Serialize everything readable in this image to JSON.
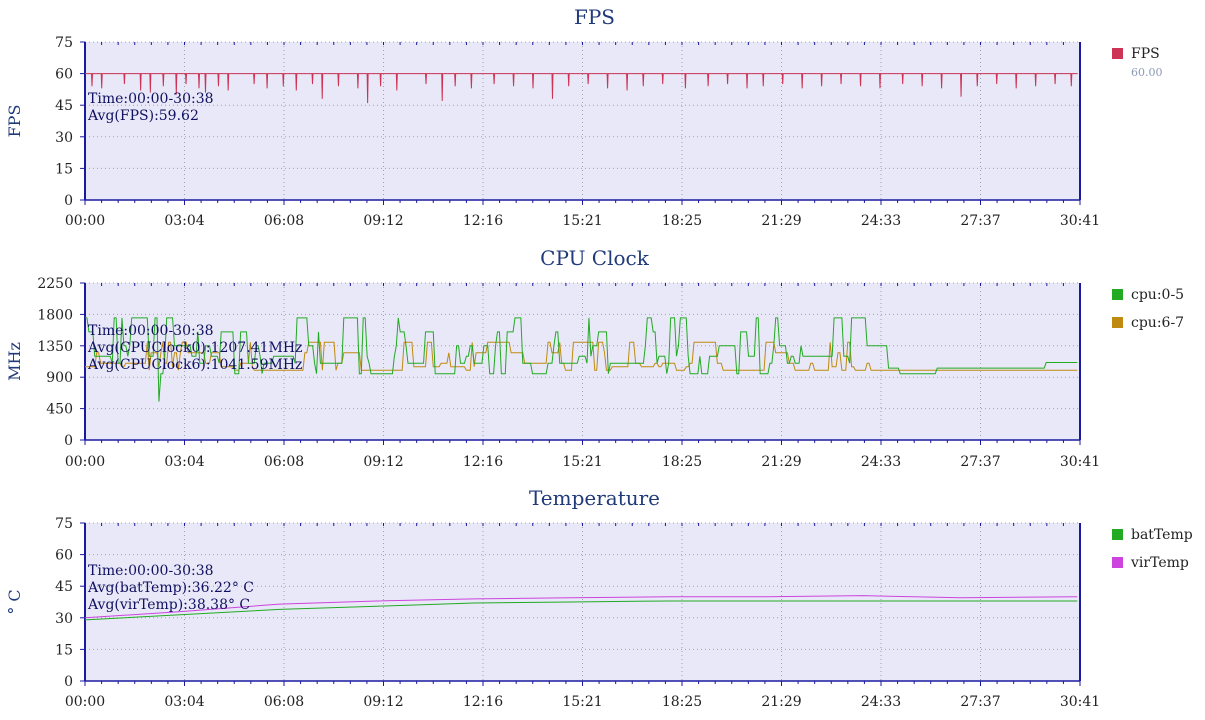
{
  "colors": {
    "plot_bg": "#e8e8f8",
    "axis": "#1a1aa0",
    "title": "#203a7a",
    "text": "#222222",
    "grid": "#a0a0b0",
    "annotation": "#101060"
  },
  "chart_data": [
    {
      "type": "line",
      "title": "FPS",
      "ylabel": "FPS",
      "ylim": [
        0,
        75
      ],
      "yticks": [
        "0",
        "15",
        "30",
        "45",
        "60",
        "75"
      ],
      "xticks": [
        "00:00",
        "03:04",
        "06:08",
        "09:12",
        "12:16",
        "15:21",
        "18:25",
        "21:29",
        "24:33",
        "27:37",
        "30:41"
      ],
      "grid": true,
      "legend_position": "right",
      "annotations": [
        "Time:00:00-30:38",
        "Avg(FPS):59.62"
      ],
      "series": [
        {
          "name": "FPS",
          "legend_value": "60.00",
          "color": "#cc3355",
          "baseline": 60,
          "dips": [
            [
              0.2,
              54
            ],
            [
              0.5,
              53
            ],
            [
              1.2,
              55
            ],
            [
              1.7,
              52
            ],
            [
              2.0,
              51
            ],
            [
              2.4,
              54
            ],
            [
              2.8,
              50
            ],
            [
              3.1,
              55
            ],
            [
              3.5,
              53
            ],
            [
              3.7,
              51
            ],
            [
              4.1,
              54
            ],
            [
              4.4,
              52
            ],
            [
              5.2,
              55
            ],
            [
              5.6,
              53
            ],
            [
              6.1,
              54
            ],
            [
              6.5,
              52
            ],
            [
              7.0,
              55
            ],
            [
              7.3,
              48
            ],
            [
              7.8,
              54
            ],
            [
              8.4,
              53
            ],
            [
              8.7,
              46
            ],
            [
              9.1,
              54
            ],
            [
              9.6,
              52
            ],
            [
              10.5,
              55
            ],
            [
              11.0,
              47
            ],
            [
              11.4,
              54
            ],
            [
              11.9,
              53
            ],
            [
              12.6,
              55
            ],
            [
              13.2,
              54
            ],
            [
              13.8,
              53
            ],
            [
              14.4,
              48
            ],
            [
              14.9,
              54
            ],
            [
              15.5,
              55
            ],
            [
              16.1,
              53
            ],
            [
              16.7,
              52
            ],
            [
              17.2,
              54
            ],
            [
              17.8,
              55
            ],
            [
              18.5,
              53
            ],
            [
              19.2,
              54
            ],
            [
              19.8,
              55
            ],
            [
              20.4,
              53
            ],
            [
              20.9,
              54
            ],
            [
              21.5,
              55
            ],
            [
              22.1,
              53
            ],
            [
              22.7,
              54
            ],
            [
              23.3,
              55
            ],
            [
              23.9,
              54
            ],
            [
              24.5,
              53
            ],
            [
              25.2,
              55
            ],
            [
              25.8,
              54
            ],
            [
              26.4,
              53
            ],
            [
              27.0,
              49
            ],
            [
              27.5,
              54
            ],
            [
              28.1,
              55
            ],
            [
              28.7,
              53
            ],
            [
              29.3,
              54
            ],
            [
              29.9,
              55
            ],
            [
              30.4,
              54
            ]
          ]
        }
      ]
    },
    {
      "type": "line",
      "title": "CPU Clock",
      "ylabel": "MHz",
      "ylim": [
        0,
        2250
      ],
      "yticks": [
        "0",
        "450",
        "900",
        "1350",
        "1800",
        "2250"
      ],
      "xticks": [
        "00:00",
        "03:04",
        "06:08",
        "09:12",
        "12:16",
        "15:21",
        "18:25",
        "21:29",
        "24:33",
        "27:37",
        "30:41"
      ],
      "grid": true,
      "legend_position": "right",
      "annotations": [
        "Time:00:00-30:38",
        "Avg(CPUClock0):1207.41MHz",
        "Avg(CPUClock6):1041.59MHz"
      ],
      "series": [
        {
          "name": "cpu:0-5",
          "color": "#22aa22"
        },
        {
          "name": "cpu:6-7",
          "color": "#c08a10"
        }
      ]
    },
    {
      "type": "line",
      "title": "Temperature",
      "ylabel": "° C",
      "ylim": [
        0,
        75
      ],
      "yticks": [
        "0",
        "15",
        "30",
        "45",
        "60",
        "75"
      ],
      "xticks": [
        "00:00",
        "03:04",
        "06:08",
        "09:12",
        "12:16",
        "15:21",
        "18:25",
        "21:29",
        "24:33",
        "27:37",
        "30:41"
      ],
      "grid": true,
      "legend_position": "right",
      "annotations": [
        "Time:00:00-30:38",
        "Avg(batTemp):36.22° C",
        "Avg(virTemp):38.38° C"
      ],
      "series": [
        {
          "name": "batTemp",
          "color": "#22aa22",
          "x": [
            0,
            3,
            6,
            9,
            12,
            15,
            18,
            21,
            24,
            27,
            30.6
          ],
          "y": [
            29,
            31.5,
            34,
            35.5,
            37,
            37.5,
            38,
            38,
            38,
            38,
            38
          ]
        },
        {
          "name": "virTemp",
          "color": "#cc44dd",
          "x": [
            0,
            3,
            6,
            9,
            12,
            15,
            18,
            21,
            24,
            27,
            30.6
          ],
          "y": [
            30,
            33,
            36.5,
            38,
            39,
            39.5,
            40,
            40,
            40.5,
            39.5,
            40
          ]
        }
      ]
    }
  ]
}
